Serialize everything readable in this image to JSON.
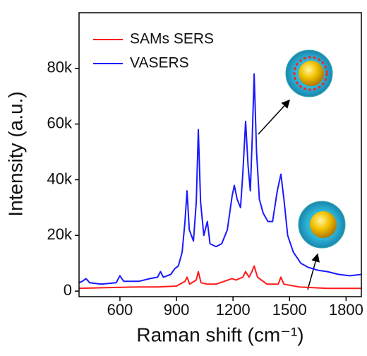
{
  "chart_data": {
    "type": "line",
    "x_label": "Raman shift (cm⁻¹)",
    "y_label": "Intensity (a.u.)",
    "xlim": [
      383,
      1881
    ],
    "xticks": [
      600,
      900,
      1200,
      1500,
      1800
    ],
    "ylim": [
      -2000,
      100000
    ],
    "yticks": [
      0,
      {
        "value": 20000,
        "label": "20k"
      },
      {
        "value": 40000,
        "label": "40k"
      },
      {
        "value": 60000,
        "label": "60k"
      },
      {
        "value": 80000,
        "label": "80k"
      }
    ],
    "legend": "upper left",
    "series": [
      {
        "name": "SAMs SERS",
        "color": "#ff1a1a",
        "x": [
          383,
          500,
          700,
          800,
          900,
          945,
          956,
          970,
          1005,
          1016,
          1030,
          1064,
          1110,
          1195,
          1215,
          1252,
          1267,
          1285,
          1300,
          1312,
          1330,
          1380,
          1440,
          1454,
          1470,
          1550,
          1700,
          1881
        ],
        "values": [
          1000,
          1200,
          1500,
          1500,
          1800,
          3500,
          5000,
          2500,
          4000,
          7000,
          3000,
          2500,
          2500,
          4500,
          4000,
          5000,
          7000,
          5000,
          7000,
          9000,
          5000,
          2500,
          2500,
          5000,
          2500,
          1500,
          1000,
          1000
        ]
      },
      {
        "name": "VASERS",
        "color": "#1a1aff",
        "x": [
          383,
          400,
          420,
          440,
          500,
          580,
          600,
          620,
          700,
          760,
          800,
          815,
          830,
          870,
          890,
          910,
          930,
          945,
          956,
          968,
          990,
          1005,
          1016,
          1028,
          1045,
          1064,
          1078,
          1110,
          1140,
          1170,
          1195,
          1207,
          1222,
          1240,
          1252,
          1267,
          1280,
          1292,
          1302,
          1312,
          1325,
          1340,
          1360,
          1385,
          1410,
          1435,
          1454,
          1470,
          1490,
          1520,
          1560,
          1600,
          1650,
          1700,
          1760,
          1820,
          1881
        ],
        "values": [
          3000,
          3500,
          4500,
          3000,
          2500,
          3000,
          5500,
          3500,
          3500,
          4500,
          5000,
          7000,
          5000,
          6000,
          8000,
          9000,
          14000,
          25000,
          36000,
          22000,
          18000,
          32000,
          58000,
          32000,
          20000,
          25000,
          17000,
          16000,
          17000,
          22000,
          34000,
          38000,
          33000,
          30000,
          42000,
          61000,
          45000,
          36000,
          55000,
          78000,
          50000,
          33000,
          28000,
          25000,
          25000,
          36000,
          42000,
          33000,
          20000,
          14000,
          10000,
          8500,
          7500,
          7000,
          6000,
          5500,
          6000
        ]
      }
    ]
  }
}
